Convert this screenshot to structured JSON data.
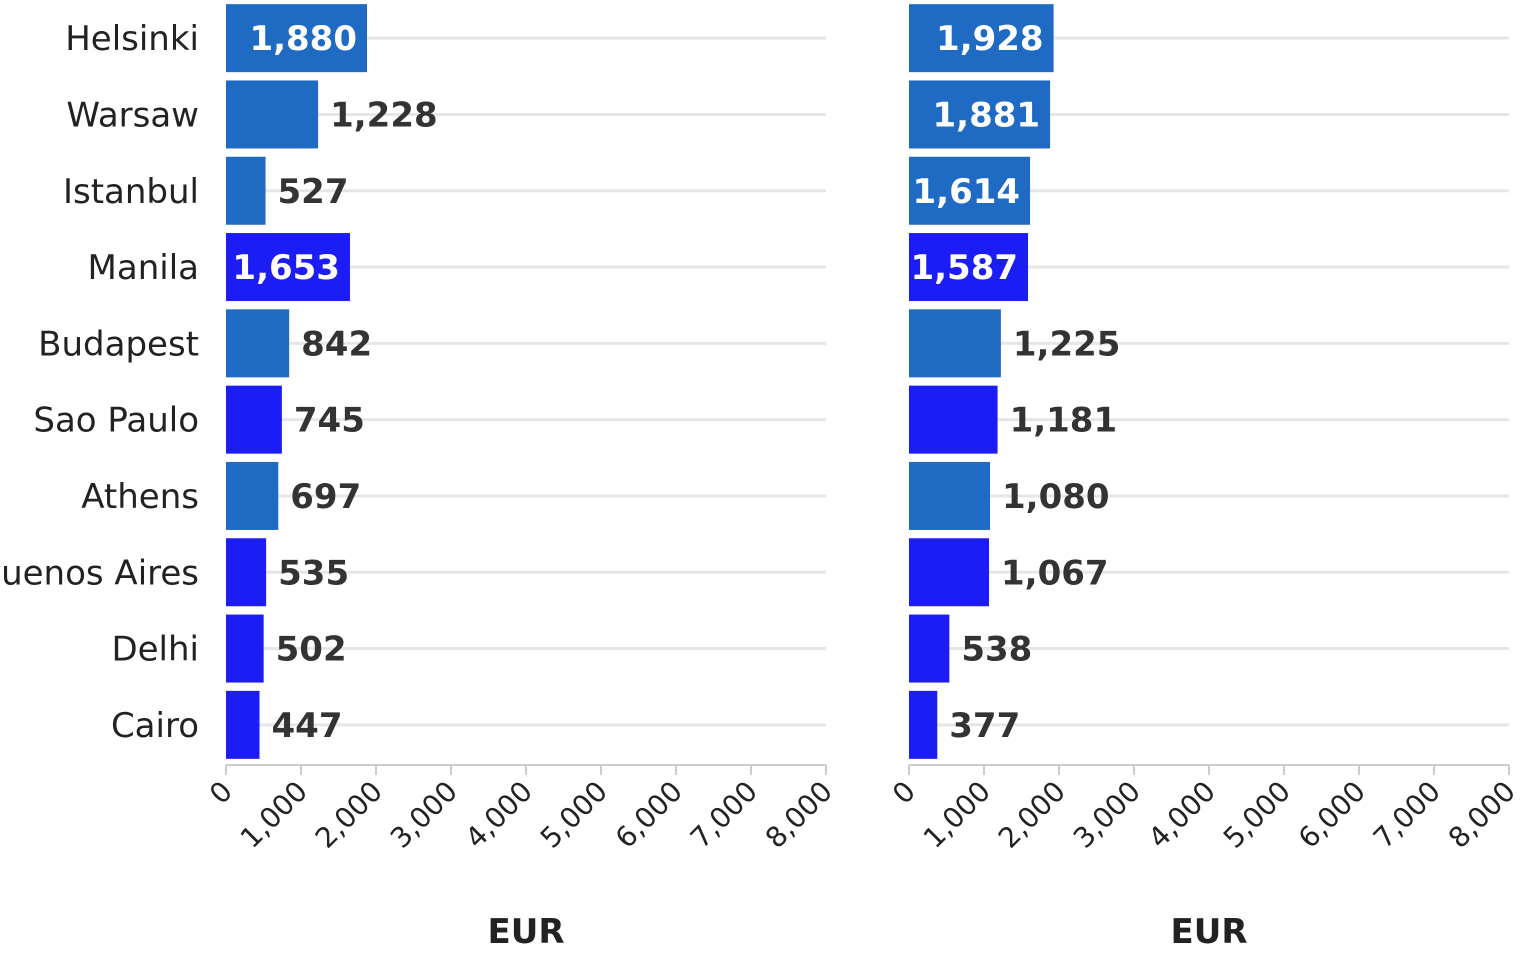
{
  "chart_data": {
    "type": "bar",
    "orientation": "horizontal",
    "categories": [
      "Helsinki",
      "Warsaw",
      "Istanbul",
      "Manila",
      "Budapest",
      "Sao Paulo",
      "Athens",
      "Buenos Aires",
      "Delhi",
      "Cairo"
    ],
    "category_colors": [
      "#1f6bc4",
      "#1f6bc4",
      "#1f6bc4",
      "#1c1cf5",
      "#1f6bc4",
      "#1c1cf5",
      "#1f6bc4",
      "#1c1cf5",
      "#1c1cf5",
      "#1c1cf5"
    ],
    "panels": [
      {
        "values": [
          1880,
          1228,
          527,
          1653,
          842,
          745,
          697,
          535,
          502,
          447
        ],
        "value_labels": [
          "1,880",
          "1,228",
          "527",
          "1,653",
          "842",
          "745",
          "697",
          "535",
          "502",
          "447"
        ],
        "xlabel": "EUR",
        "xlim": [
          0,
          8000
        ],
        "xticks": [
          "0",
          "1,000",
          "2,000",
          "3,000",
          "4,000",
          "5,000",
          "6,000",
          "7,000",
          "8,000"
        ]
      },
      {
        "values": [
          1928,
          1881,
          1614,
          1587,
          1225,
          1181,
          1080,
          1067,
          538,
          377
        ],
        "value_labels": [
          "1,928",
          "1,881",
          "1,614",
          "1,587",
          "1,225",
          "1,181",
          "1,080",
          "1,067",
          "538",
          "377"
        ],
        "xlabel": "EUR",
        "xlim": [
          0,
          8000
        ],
        "xticks": [
          "0",
          "1,000",
          "2,000",
          "3,000",
          "4,000",
          "5,000",
          "6,000",
          "7,000",
          "8,000"
        ]
      }
    ],
    "grid": true,
    "colors": {
      "grid": "#e6e6e6",
      "axis": "#cccccc",
      "label_outside": "#333333",
      "label_inside": "#ffffff"
    }
  }
}
